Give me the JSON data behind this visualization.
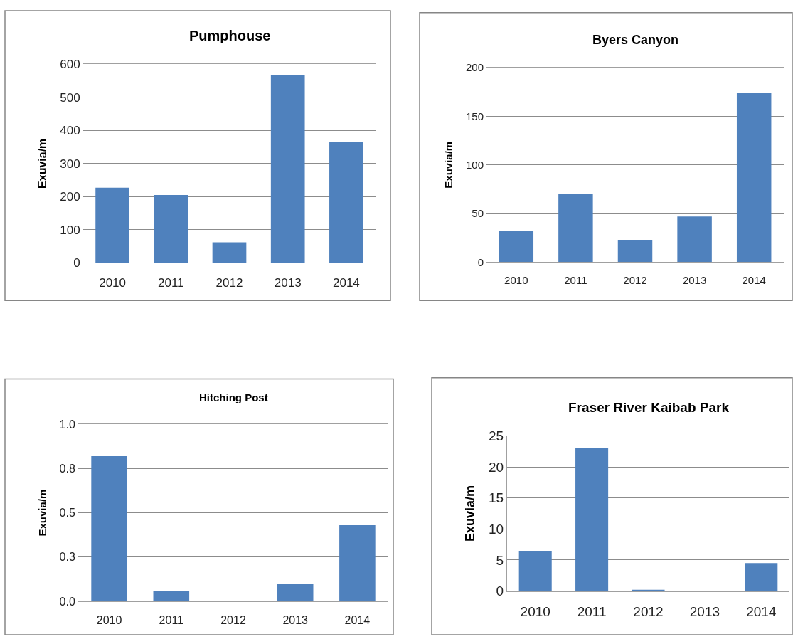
{
  "chart_data": [
    {
      "type": "bar",
      "title": "Pumphouse",
      "ylabel": "Exuvia/m",
      "categories": [
        "2010",
        "2011",
        "2012",
        "2013",
        "2014"
      ],
      "values": [
        227,
        205,
        62,
        568,
        364
      ],
      "color": "#4f81bd",
      "ylim": [
        0,
        600
      ],
      "yticks": [
        0,
        100,
        200,
        300,
        400,
        500,
        600
      ],
      "grid": "y"
    },
    {
      "type": "bar",
      "title": "Byers Canyon",
      "ylabel": "Exuvia/m",
      "categories": [
        "2010",
        "2011",
        "2012",
        "2013",
        "2014"
      ],
      "values": [
        32,
        70,
        23,
        47,
        174
      ],
      "color": "#4f81bd",
      "ylim": [
        0,
        200
      ],
      "yticks": [
        0,
        50,
        100,
        150,
        200
      ],
      "grid": "y"
    },
    {
      "type": "bar",
      "title": "Hitching Post",
      "ylabel": "Exuvia/m",
      "categories": [
        "2010",
        "2011",
        "2012",
        "2013",
        "2014"
      ],
      "values": [
        0.82,
        0.06,
        0,
        0.1,
        0.43
      ],
      "color": "#4f81bd",
      "ylim": [
        0,
        1.0
      ],
      "yticks": [
        {
          "value": 0,
          "label": "0.0"
        },
        {
          "value": 0.25,
          "label": "0.3"
        },
        {
          "value": 0.5,
          "label": "0.5"
        },
        {
          "value": 0.75,
          "label": "0.8"
        },
        {
          "value": 1.0,
          "label": "1.0"
        }
      ],
      "grid": "y"
    },
    {
      "type": "bar",
      "title": "Fraser River Kaibab Park",
      "ylabel": "Exuvia/m",
      "categories": [
        "2010",
        "2011",
        "2012",
        "2013",
        "2014"
      ],
      "values": [
        6.4,
        23.1,
        0.2,
        0,
        4.5
      ],
      "color": "#4f81bd",
      "ylim": [
        0,
        25
      ],
      "yticks": [
        0,
        5,
        10,
        15,
        20,
        25
      ],
      "grid": "y"
    }
  ]
}
